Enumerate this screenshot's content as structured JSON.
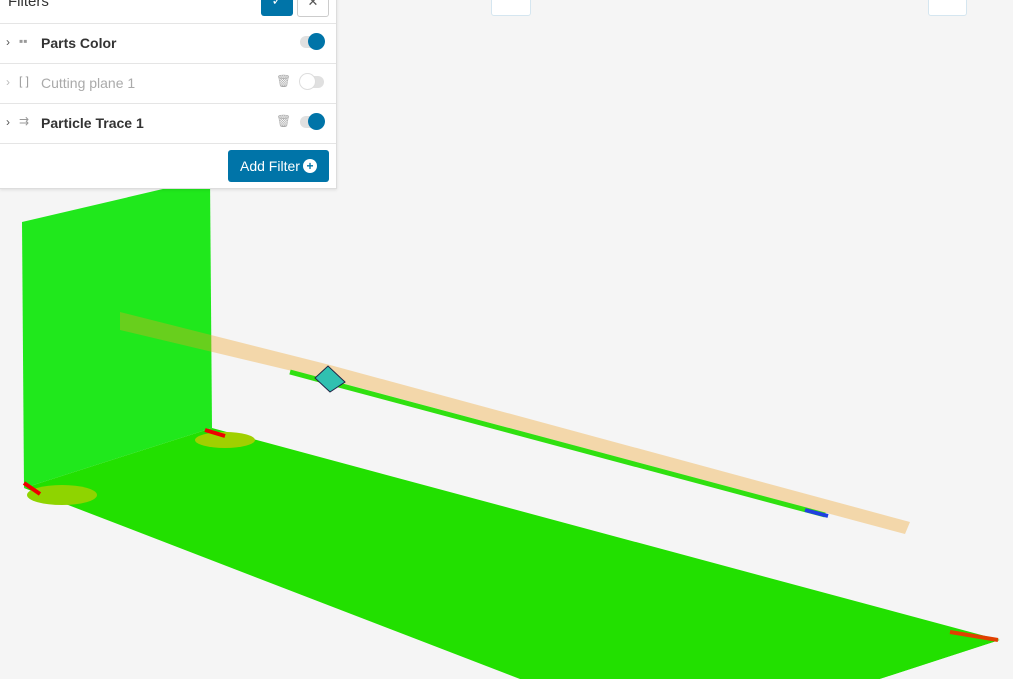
{
  "filters_panel": {
    "title": "Filters",
    "confirm_icon": "check-icon",
    "close_icon": "close-icon",
    "items": [
      {
        "label": "Parts Color",
        "icon": "cubes-icon",
        "enabled": true,
        "deletable": false
      },
      {
        "label": "Cutting plane 1",
        "icon": "cutting-plane-icon",
        "enabled": false,
        "deletable": true
      },
      {
        "label": "Particle Trace 1",
        "icon": "particle-trace-icon",
        "enabled": true,
        "deletable": true
      }
    ],
    "add_filter_label": "Add Filter"
  },
  "colors": {
    "accent": "#0074a8",
    "surface": "#22e000",
    "trace": "#f0a020"
  }
}
